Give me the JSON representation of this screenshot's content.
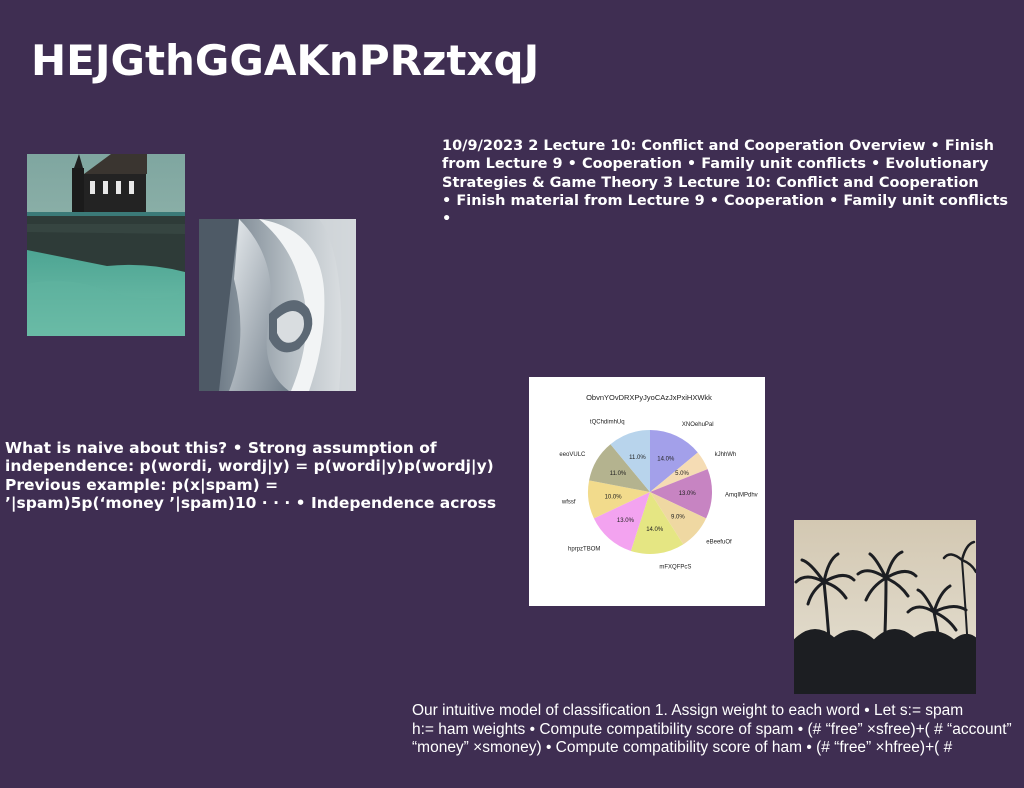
{
  "slide": {
    "title": "HEJGthGGAKnPRztxqJ",
    "block_top_right": [
      "10/9/2023 2 Lecture 10: Conflict and Cooperation Overview • Finish",
      "from Lecture 9 • Cooperation • Family unit conflicts • Evolutionary",
      "Strategies & Game Theory 3 Lecture 10: Conflict and Cooperation",
      "• Finish material from Lecture 9 • Cooperation • Family unit conflicts •"
    ],
    "block_left": [
      "What is naive about this? • Strong assumption of",
      "independence: p(wordi, wordj|y) = p(wordi|y)p(wordj|y)",
      "Previous example: p(x|spam) =",
      "’|spam)5p(‘money ’|spam)10 · · · • Independence across"
    ],
    "block_bottom": [
      "Our intuitive model of classification 1. Assign weight to each word • Let s:= spam",
      "h:= ham weights • Compute compatibility score of spam • (# “free” ×sfree)+( # “account”",
      "“money” ×smoney) • Compute compatibility score of ham • (# “free” ×hfree)+( #"
    ]
  },
  "colors": {
    "background": "#3f2e52",
    "text": "#ffffff"
  },
  "images": [
    {
      "name": "church-landscape-photo"
    },
    {
      "name": "abstract-sculpture-photo"
    },
    {
      "name": "palm-trees-photo"
    }
  ],
  "chart_data": {
    "type": "pie",
    "title": "ObvnYOvDRXPyJyoCAzJxPxiHXWkk",
    "labels": [
      "XNOehuPal",
      "kJhhWh",
      "AmqIMPdhv",
      "eBeefuOf",
      "mFXQFPcS",
      "hprpzTBOM",
      "wfssf",
      "eeoVULC",
      "tQChdimhUq"
    ],
    "values": [
      14.0,
      5.0,
      13.0,
      9.0,
      14.0,
      13.0,
      10.0,
      11.0,
      11.0
    ],
    "value_labels": [
      "14.0%",
      "5.0%",
      "13.0%",
      "9.0%",
      "14.0%",
      "13.0%",
      "10.0%",
      "11.0%",
      "11.0%"
    ],
    "colors": [
      "#a3a0ea",
      "#f5dcb4",
      "#c784c2",
      "#efd8a2",
      "#e5e683",
      "#f3a3f0",
      "#f2db8c",
      "#b4b38f",
      "#b8d4ec"
    ],
    "start_angle_deg": 90,
    "direction": "clockwise"
  }
}
